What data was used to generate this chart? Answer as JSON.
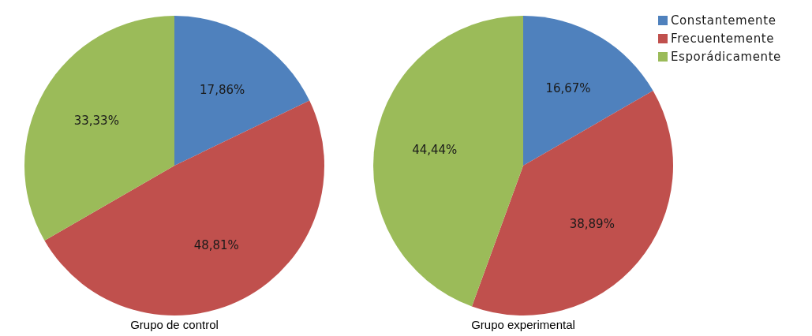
{
  "chart_data": {
    "type": "pie",
    "categories": [
      "Constantemente",
      "Frecuentemente",
      "Esporádicamente"
    ],
    "colors": [
      "#4f81bd",
      "#c0504d",
      "#9bbb59"
    ],
    "legend": "top right",
    "series": [
      {
        "name": "Grupo de control",
        "values": [
          17.86,
          48.81,
          33.33
        ],
        "value_labels": [
          "17,86%",
          "48,81%",
          "33,33%"
        ]
      },
      {
        "name": "Grupo experimental",
        "values": [
          16.67,
          38.89,
          44.44
        ],
        "value_labels": [
          "16,67%",
          "38,89%",
          "44,44%"
        ]
      }
    ]
  }
}
